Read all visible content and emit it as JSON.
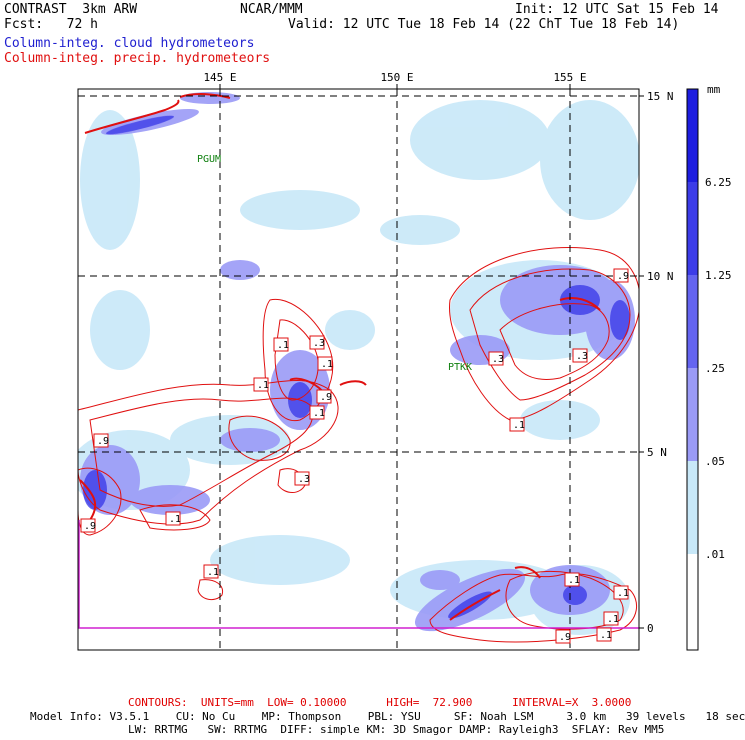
{
  "header": {
    "model": "CONTRAST  3km ARW",
    "center": "NCAR/MMM",
    "init": "Init: 12 UTC Sat 15 Feb 14",
    "fcst": "Fcst:   72 h",
    "valid": "Valid: 12 UTC Tue 18 Feb 14 (22 ChT Tue 18 Feb 14)",
    "field_cloud": "Column-integ. cloud hydrometeors",
    "field_precip": "Column-integ. precip. hydrometeors"
  },
  "map": {
    "lon_labels": [
      "145 E",
      "150 E",
      "155 E"
    ],
    "lat_labels": [
      "15 N",
      "10 N",
      "5 N",
      "0"
    ],
    "stations": [
      "PGUM",
      "PTKK"
    ],
    "contour_labels": [
      ".1",
      ".3",
      ".1",
      ".1",
      ".9",
      ".1",
      ".9",
      ".3",
      ".1",
      ".9",
      ".1",
      ".9",
      ".3",
      ".3",
      ".1",
      ".1",
      ".1",
      ".1",
      ".9",
      ".1"
    ]
  },
  "colorbar": {
    "unit": "mm",
    "labels": [
      "6.25",
      "1.25",
      ".25",
      ".05",
      ".01"
    ],
    "colors": [
      "#1e1ee0",
      "#3c3ce8",
      "#6464f0",
      "#9a9af6",
      "#c8e8f8",
      "#e4f6fa",
      "#ffffff"
    ]
  },
  "footer": {
    "contours": "CONTOURS:  UNITS=mm  LOW= 0.10000      HIGH=  72.900      INTERVAL=X  3.0000",
    "model_info_1": "Model Info: V3.5.1    CU: No Cu    MP: Thompson    PBL: YSU     SF: Noah LSM     3.0 km   39 levels   18 sec",
    "model_info_2": "LW: RRTMG   SW: RRTMG  DIFF: simple KM: 3D Smagor DAMP: Rayleigh3  SFLAY: Rev MM5"
  }
}
